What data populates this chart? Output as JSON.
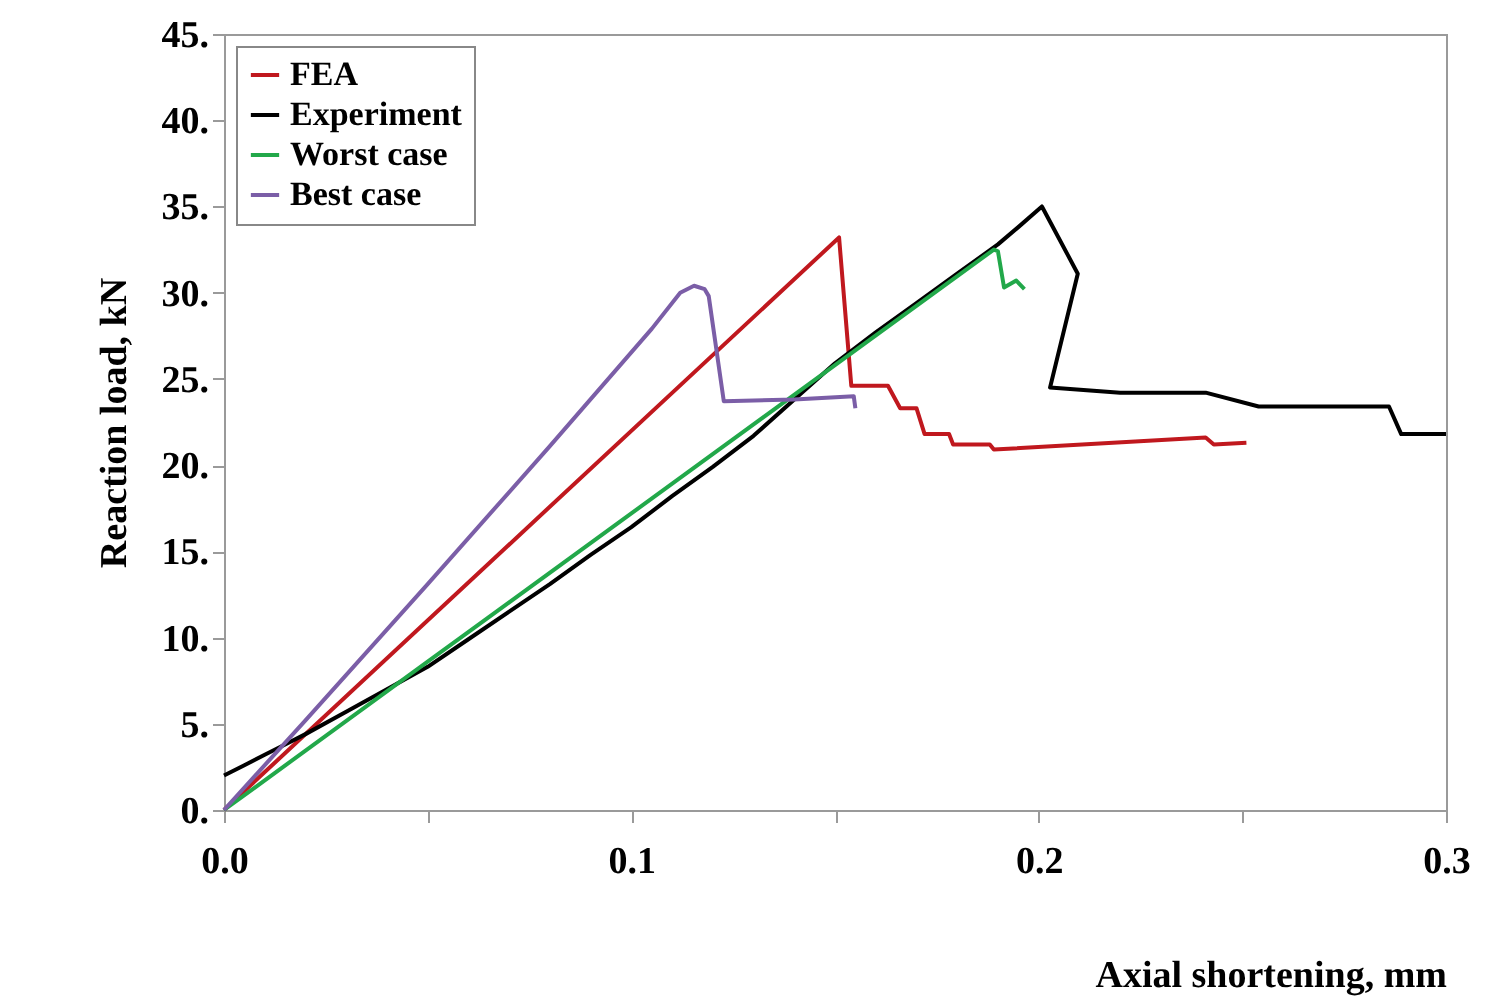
{
  "chart_data": {
    "type": "line",
    "xlabel": "Axial shortening, mm",
    "ylabel": "Reaction load, kN",
    "legend": "top left",
    "xlim": [
      0,
      0.3
    ],
    "ylim": [
      0,
      45
    ],
    "xticks": [
      {
        "value": 0,
        "label": "0.0"
      },
      {
        "value": 0.05,
        "label": null
      },
      {
        "value": 0.1,
        "label": "0.1"
      },
      {
        "value": 0.15,
        "label": null
      },
      {
        "value": 0.2,
        "label": "0.2"
      },
      {
        "value": 0.25,
        "label": null
      },
      {
        "value": 0.3,
        "label": "0.3"
      }
    ],
    "yticks": [
      {
        "value": 0,
        "label": "0."
      },
      {
        "value": 5,
        "label": "5."
      },
      {
        "value": 10,
        "label": "10."
      },
      {
        "value": 15,
        "label": "15."
      },
      {
        "value": 20,
        "label": "20."
      },
      {
        "value": 25,
        "label": "25."
      },
      {
        "value": 30,
        "label": "30."
      },
      {
        "value": 35,
        "label": "35."
      },
      {
        "value": 40,
        "label": "40."
      },
      {
        "value": 45,
        "label": "45."
      }
    ],
    "series": [
      {
        "name": "FEA",
        "color": "#c0181e",
        "x": [
          0,
          0.151,
          0.154,
          0.163,
          0.166,
          0.17,
          0.172,
          0.178,
          0.179,
          0.188,
          0.189,
          0.241,
          0.243,
          0.251
        ],
        "values": [
          0,
          33.2,
          24.6,
          24.6,
          23.3,
          23.3,
          21.8,
          21.8,
          21.2,
          21.2,
          20.9,
          21.6,
          21.2,
          21.3
        ]
      },
      {
        "name": "Experiment",
        "color": "#000000",
        "x": [
          0,
          0.005,
          0.01,
          0.015,
          0.02,
          0.03,
          0.04,
          0.05,
          0.06,
          0.07,
          0.08,
          0.09,
          0.1,
          0.11,
          0.12,
          0.13,
          0.14,
          0.15,
          0.16,
          0.17,
          0.18,
          0.19,
          0.195,
          0.2008,
          0.2096,
          0.2028,
          0.22,
          0.241,
          0.254,
          0.286,
          0.289,
          0.3
        ],
        "values": [
          2.0,
          2.6,
          3.2,
          3.8,
          4.4,
          5.7,
          7.0,
          8.3,
          9.9,
          11.5,
          13.1,
          14.8,
          16.4,
          18.2,
          19.9,
          21.7,
          23.8,
          25.9,
          27.7,
          29.4,
          31.1,
          32.8,
          33.8,
          35.0,
          31.1,
          24.5,
          24.2,
          24.2,
          23.4,
          23.4,
          21.8,
          21.8
        ]
      },
      {
        "name": "Worst case",
        "color": "#22a84a",
        "x": [
          0,
          0.05,
          0.1,
          0.15,
          0.189,
          0.19,
          0.1915,
          0.1945,
          0.1965
        ],
        "values": [
          0,
          8.6,
          17.2,
          25.8,
          32.5,
          32.4,
          30.3,
          30.7,
          30.2
        ]
      },
      {
        "name": "Best case",
        "color": "#7b5ea7",
        "x": [
          0,
          0.02,
          0.05,
          0.08,
          0.105,
          0.112,
          0.1154,
          0.118,
          0.119,
          0.1227,
          0.14,
          0.1546,
          0.155
        ],
        "values": [
          0,
          5.2,
          13.1,
          21.1,
          27.9,
          30.0,
          30.4,
          30.2,
          29.8,
          23.7,
          23.8,
          24.0,
          23.3
        ]
      }
    ]
  }
}
